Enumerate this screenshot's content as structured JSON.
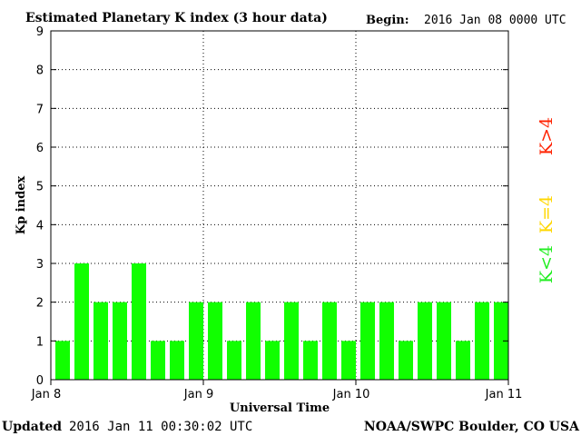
{
  "header": {
    "title": "Estimated Planetary K index (3 hour data)",
    "begin_label": "Begin:",
    "begin_value": "2016 Jan 08 0000 UTC"
  },
  "footer": {
    "updated_label": "Updated",
    "updated_value": "2016 Jan 11 00:30:02 UTC",
    "source": "NOAA/SWPC Boulder, CO USA"
  },
  "legend": [
    {
      "label": "K>4",
      "color": "#ff2200"
    },
    {
      "label": "K=4",
      "color": "#ffd700"
    },
    {
      "label": "K<4",
      "color": "#22ee22"
    }
  ],
  "chart_data": {
    "type": "bar",
    "xlabel": "Universal Time",
    "ylabel": "Kp index",
    "ylim": [
      0,
      9
    ],
    "yticks": [
      0,
      1,
      2,
      3,
      4,
      5,
      6,
      7,
      8,
      9
    ],
    "xtick_labels": [
      "Jan 8",
      "Jan 9",
      "Jan 10",
      "Jan 11"
    ],
    "grid": "dotted gridlines at each Kp level and each day",
    "bar_color": "#11ff00",
    "values": [
      1,
      3,
      2,
      2,
      3,
      1,
      1,
      2,
      2,
      1,
      2,
      1,
      2,
      1,
      2,
      1,
      2,
      2,
      1,
      2,
      2,
      1,
      2,
      2
    ]
  }
}
